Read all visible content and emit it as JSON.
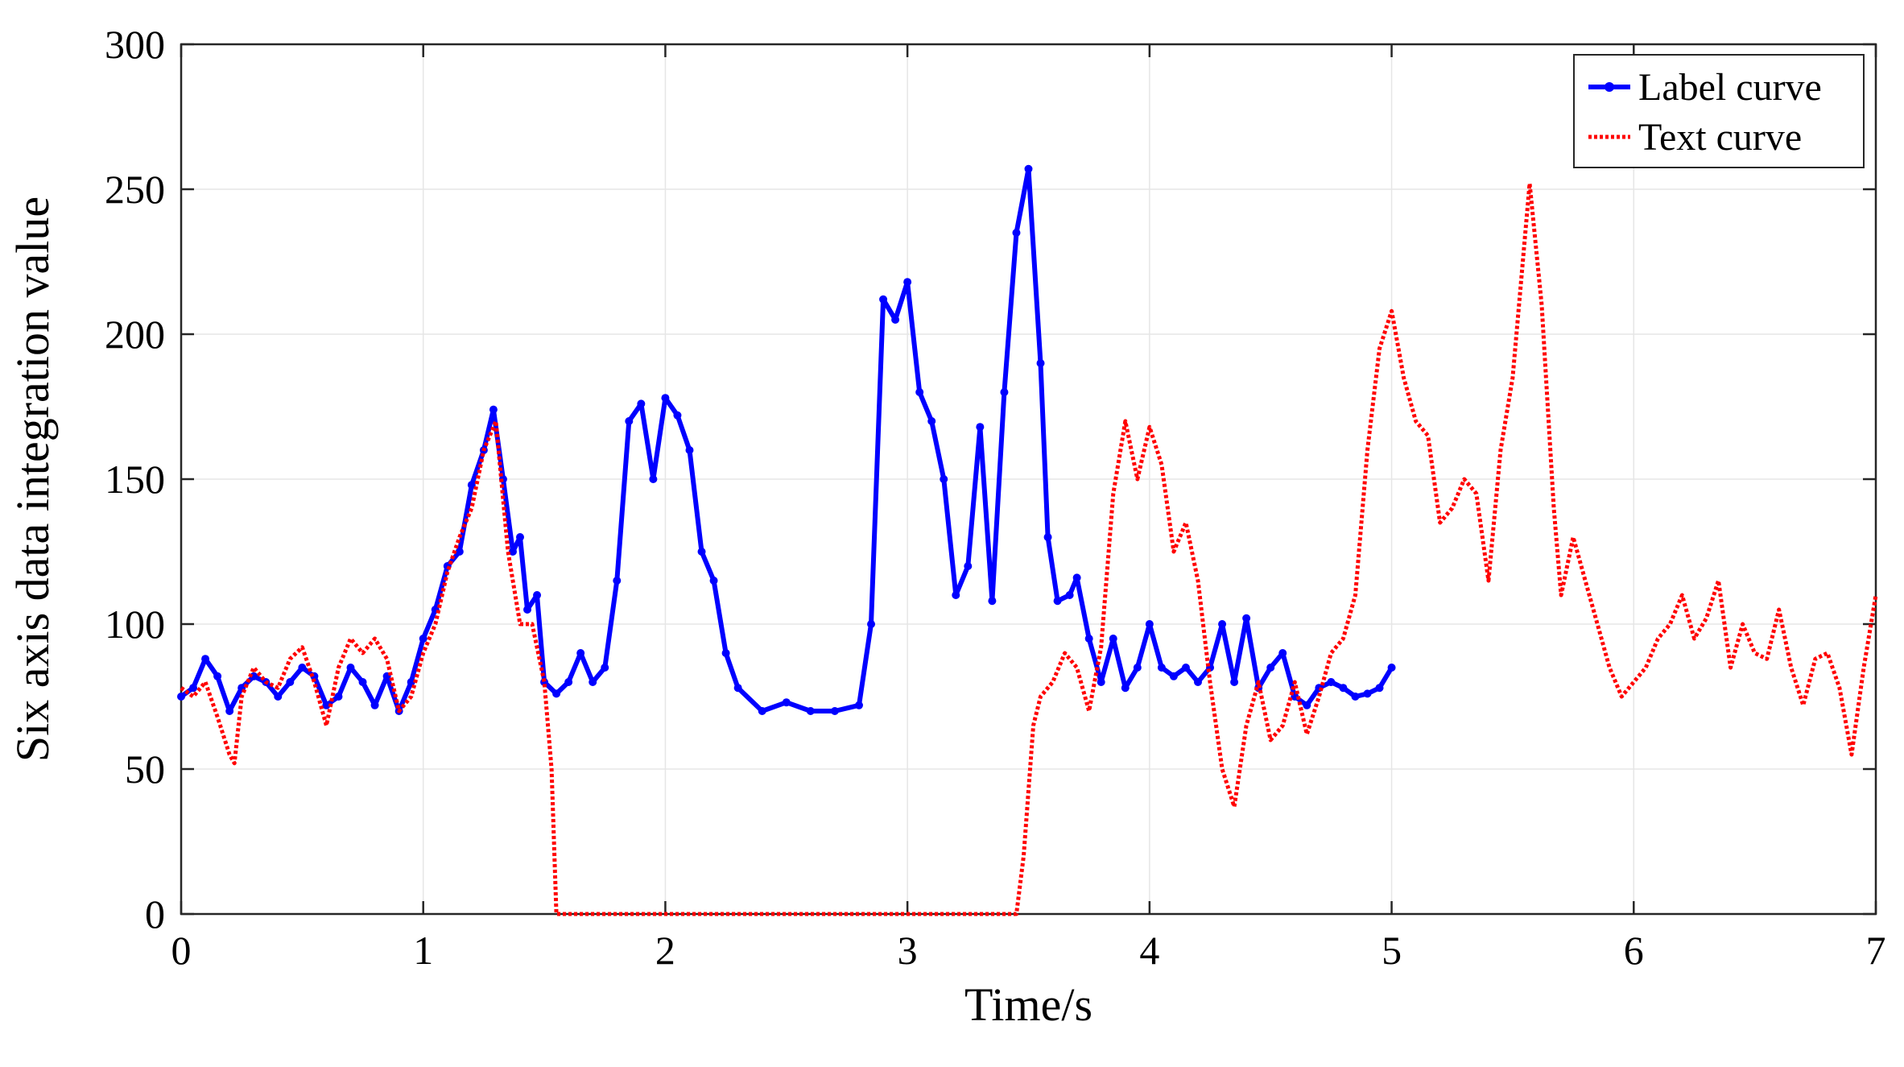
{
  "chart_data": {
    "type": "line",
    "title": "",
    "xlabel": "Time/s",
    "ylabel": "Six axis data integration value",
    "xlim": [
      0,
      7
    ],
    "ylim": [
      0,
      300
    ],
    "xticks": [
      "0",
      "1",
      "2",
      "3",
      "4",
      "5",
      "6",
      "7"
    ],
    "yticks": [
      "0",
      "50",
      "100",
      "150",
      "200",
      "250",
      "300"
    ],
    "grid": true,
    "legend_position": "top-right",
    "series": [
      {
        "name": "Label curve",
        "color": "#0000ff",
        "style": "solid-with-dot-markers",
        "x": [
          0,
          0.05,
          0.1,
          0.15,
          0.2,
          0.25,
          0.3,
          0.35,
          0.4,
          0.45,
          0.5,
          0.55,
          0.6,
          0.65,
          0.7,
          0.75,
          0.8,
          0.85,
          0.9,
          0.95,
          1.0,
          1.05,
          1.1,
          1.15,
          1.2,
          1.25,
          1.29,
          1.33,
          1.37,
          1.4,
          1.43,
          1.47,
          1.5,
          1.55,
          1.6,
          1.65,
          1.7,
          1.75,
          1.8,
          1.85,
          1.9,
          1.95,
          2.0,
          2.05,
          2.1,
          2.15,
          2.2,
          2.25,
          2.3,
          2.4,
          2.5,
          2.6,
          2.7,
          2.8,
          2.85,
          2.9,
          2.95,
          3.0,
          3.05,
          3.1,
          3.15,
          3.2,
          3.25,
          3.3,
          3.35,
          3.4,
          3.45,
          3.5,
          3.55,
          3.58,
          3.62,
          3.67,
          3.7,
          3.75,
          3.8,
          3.85,
          3.9,
          3.95,
          4.0,
          4.05,
          4.1,
          4.15,
          4.2,
          4.25,
          4.3,
          4.35,
          4.4,
          4.45,
          4.5,
          4.55,
          4.6,
          4.65,
          4.7,
          4.75,
          4.8,
          4.85,
          4.9,
          4.95,
          5.0
        ],
        "y": [
          75,
          78,
          88,
          82,
          70,
          78,
          82,
          80,
          75,
          80,
          85,
          82,
          72,
          75,
          85,
          80,
          72,
          82,
          70,
          80,
          95,
          105,
          120,
          125,
          148,
          160,
          174,
          150,
          125,
          130,
          105,
          110,
          80,
          76,
          80,
          90,
          80,
          85,
          115,
          170,
          176,
          150,
          178,
          172,
          160,
          125,
          115,
          90,
          78,
          70,
          73,
          70,
          70,
          72,
          100,
          212,
          205,
          218,
          180,
          170,
          150,
          110,
          120,
          168,
          108,
          180,
          235,
          257,
          190,
          130,
          108,
          110,
          116,
          95,
          80,
          95,
          78,
          85,
          100,
          85,
          82,
          85,
          80,
          85,
          100,
          80,
          102,
          78,
          85,
          90,
          75,
          72,
          78,
          80,
          78,
          75,
          76,
          78,
          85
        ]
      },
      {
        "name": "Text curve",
        "color": "#ff0000",
        "style": "dotted",
        "x": [
          0,
          0.05,
          0.1,
          0.15,
          0.2,
          0.22,
          0.25,
          0.3,
          0.35,
          0.4,
          0.45,
          0.5,
          0.55,
          0.6,
          0.65,
          0.7,
          0.75,
          0.8,
          0.85,
          0.9,
          0.95,
          1.0,
          1.05,
          1.1,
          1.15,
          1.2,
          1.25,
          1.3,
          1.35,
          1.4,
          1.45,
          1.5,
          1.53,
          1.55,
          3.45,
          3.48,
          3.52,
          3.55,
          3.6,
          3.65,
          3.7,
          3.75,
          3.8,
          3.85,
          3.9,
          3.95,
          4.0,
          4.05,
          4.1,
          4.15,
          4.2,
          4.25,
          4.3,
          4.35,
          4.4,
          4.45,
          4.5,
          4.55,
          4.6,
          4.65,
          4.7,
          4.75,
          4.8,
          4.85,
          4.9,
          4.95,
          5.0,
          5.05,
          5.1,
          5.15,
          5.2,
          5.25,
          5.3,
          5.35,
          5.4,
          5.45,
          5.5,
          5.57,
          5.62,
          5.67,
          5.7,
          5.75,
          5.8,
          5.85,
          5.9,
          5.95,
          6.0,
          6.05,
          6.1,
          6.15,
          6.2,
          6.25,
          6.3,
          6.35,
          6.4,
          6.45,
          6.5,
          6.55,
          6.6,
          6.65,
          6.7,
          6.75,
          6.8,
          6.85,
          6.9,
          6.95,
          7.0
        ],
        "y": [
          78,
          75,
          80,
          68,
          55,
          52,
          75,
          85,
          80,
          78,
          88,
          92,
          80,
          65,
          85,
          95,
          90,
          95,
          88,
          70,
          75,
          90,
          100,
          118,
          130,
          140,
          160,
          170,
          125,
          100,
          100,
          80,
          50,
          0,
          0,
          20,
          65,
          75,
          80,
          90,
          85,
          70,
          92,
          145,
          170,
          150,
          168,
          155,
          125,
          135,
          115,
          80,
          50,
          37,
          65,
          80,
          60,
          65,
          80,
          62,
          75,
          90,
          95,
          110,
          160,
          195,
          208,
          185,
          170,
          165,
          135,
          140,
          150,
          145,
          115,
          160,
          185,
          252,
          210,
          140,
          110,
          130,
          115,
          100,
          85,
          75,
          80,
          85,
          95,
          100,
          110,
          95,
          102,
          115,
          85,
          100,
          90,
          88,
          105,
          85,
          72,
          88,
          90,
          78,
          55,
          85,
          110
        ]
      }
    ]
  }
}
